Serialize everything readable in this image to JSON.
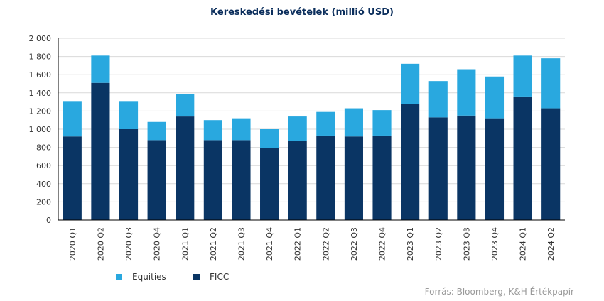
{
  "chart_data": {
    "type": "bar",
    "stacked": true,
    "title": "Kereskedési bevételek (millió USD)",
    "categories": [
      "2020 Q1",
      "2020 Q2",
      "2020 Q3",
      "2020 Q4",
      "2021 Q1",
      "2021 Q2",
      "2021 Q3",
      "2021 Q4",
      "2022 Q1",
      "2022 Q2",
      "2022 Q3",
      "2022 Q4",
      "2023 Q1",
      "2023 Q2",
      "2023 Q3",
      "2023 Q4",
      "2024 Q1",
      "2024 Q2"
    ],
    "series": [
      {
        "name": "FICC",
        "color": "#0a3564",
        "values": [
          920,
          1510,
          1000,
          880,
          1140,
          880,
          880,
          790,
          870,
          930,
          920,
          930,
          1280,
          1130,
          1150,
          1120,
          1360,
          1230
        ]
      },
      {
        "name": "Equities",
        "color": "#29a8df",
        "values": [
          390,
          300,
          310,
          200,
          250,
          220,
          240,
          210,
          270,
          260,
          310,
          280,
          440,
          400,
          510,
          460,
          450,
          550
        ]
      }
    ],
    "ylim": [
      0,
      2000
    ],
    "yticks": [
      "0",
      "200",
      "400",
      "600",
      "800",
      "1 000",
      "1 200",
      "1 400",
      "1 600",
      "1 800",
      "2 000"
    ],
    "grid": true,
    "legend_placement": "bottom-left",
    "legend": [
      {
        "label": "Equities",
        "color": "#29a8df"
      },
      {
        "label": "FICC",
        "color": "#0a3564"
      }
    ]
  },
  "source": "Forrás: Bloomberg, K&H Értékpapír"
}
